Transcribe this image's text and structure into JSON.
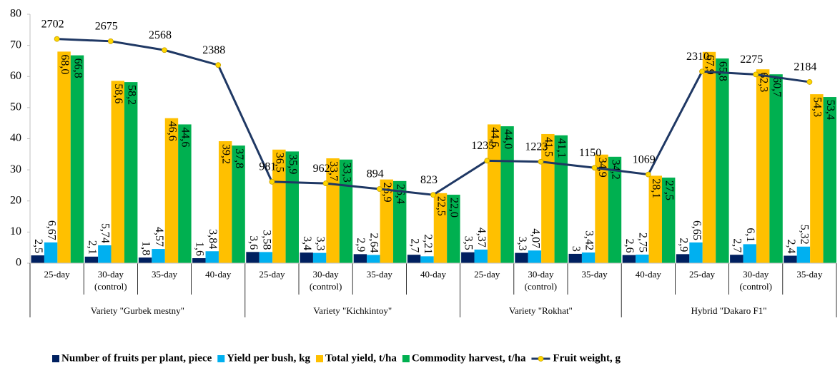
{
  "chart_data": {
    "type": "bar",
    "groups": [
      {
        "name": "Variety \"Gurbek mestny\"",
        "categories": [
          "25-day",
          "30-day (control)",
          "35-day",
          "40-day"
        ]
      },
      {
        "name": "Variety \"Kichkintoy\"",
        "categories": [
          "25-day",
          "30-day (control)",
          "35-day",
          "40-day"
        ]
      },
      {
        "name": "Variety \"Rokhat\"",
        "categories": [
          "25-day",
          "30-day (control)",
          "35-day"
        ]
      },
      {
        "name": "Hybrid \"Dakaro F1\"",
        "categories": [
          "40-day",
          "25-day",
          "30-day (control)",
          "35-day"
        ]
      }
    ],
    "series": [
      {
        "name": "Number of fruits per plant, piece",
        "color": "#002060",
        "values": [
          2.5,
          2.1,
          1.8,
          1.6,
          3.6,
          3.4,
          2.9,
          2.7,
          3.5,
          3.3,
          3,
          2.6,
          2.9,
          2.7,
          2.4
        ],
        "value_labels": [
          "2,5",
          "2,1",
          "1,8",
          "1,6",
          "3,6",
          "3,4",
          "2,9",
          "2,7",
          "3,5",
          "3,3",
          "3",
          "2,6",
          "2,9",
          "2,7",
          "2,4"
        ]
      },
      {
        "name": "Yield per bush, kg",
        "color": "#00b0f0",
        "values": [
          6.67,
          5.74,
          4.57,
          3.84,
          3.58,
          3.3,
          2.64,
          2.21,
          4.37,
          4.07,
          3.42,
          2.75,
          6.65,
          6.1,
          5.32
        ],
        "value_labels": [
          "6,67",
          "5,74",
          "4,57",
          "3,84",
          "3,58",
          "3,3",
          "2,64",
          "2,21",
          "4,37",
          "4,07",
          "3,42",
          "2,75",
          "6,65",
          "6,1",
          "5,32"
        ]
      },
      {
        "name": "Total yield, t/ha",
        "color": "#ffc000",
        "values": [
          68.0,
          58.6,
          46.6,
          39.2,
          36.5,
          33.7,
          26.9,
          22.5,
          44.6,
          41.5,
          34.9,
          28.1,
          67.9,
          62.3,
          54.3
        ],
        "value_labels": [
          "68,0",
          "58,6",
          "46,6",
          "39,2",
          "36,5",
          "33,7",
          "26,9",
          "22,5",
          "44,6",
          "41,5",
          "34,9",
          "28,1",
          "67,9",
          "62,3",
          "54,3"
        ]
      },
      {
        "name": "Commodity harvest, t/ha",
        "color": "#00b050",
        "values": [
          66.8,
          58.2,
          44.6,
          37.8,
          35.9,
          33.3,
          26.4,
          22.0,
          44.0,
          41.1,
          34.2,
          27.5,
          65.8,
          60.7,
          53.4
        ],
        "value_labels": [
          "66,8",
          "58,2",
          "44,6",
          "37,8",
          "35,9",
          "33,3",
          "26,4",
          "22,0",
          "44,0",
          "41,1",
          "34,2",
          "27,5",
          "65,8",
          "60,7",
          "53,4"
        ]
      },
      {
        "name": "Fruit weight, g",
        "color": "#1f3864",
        "type": "line",
        "axis": "y2",
        "marker_color": "#ffd700",
        "values": [
          2702,
          2675,
          2568,
          2388,
          981,
          962,
          894,
          823,
          1235,
          1223,
          1150,
          1069,
          2310,
          2275,
          2184
        ]
      }
    ],
    "ylim": [
      0,
      80
    ],
    "yticks": [
      0,
      10,
      20,
      30,
      40,
      50,
      60,
      70,
      80
    ],
    "y2lim": [
      0,
      3000
    ],
    "legend": "bottom"
  }
}
